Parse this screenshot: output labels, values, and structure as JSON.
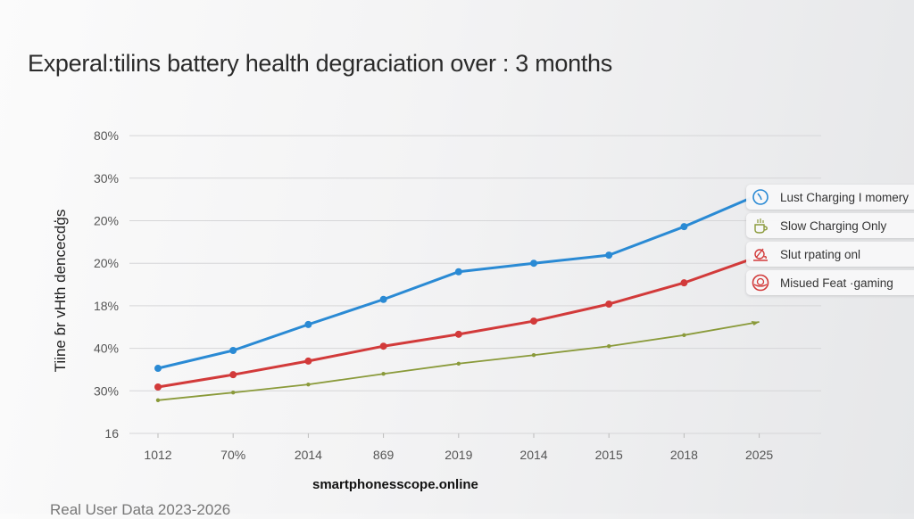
{
  "chart_data": {
    "type": "line",
    "title": "Experal:tilins battery health degraciation over : 3 months",
    "ylabel": "Tiine ɓr vHth dencecdģs",
    "xlabel": "",
    "x_ticks": [
      "1012",
      "70%",
      "2014",
      "869",
      "2019",
      "2014",
      "2015",
      "2018",
      "2025"
    ],
    "y_ticks": [
      "16",
      "30%",
      "40%",
      "18%",
      "20%",
      "20%",
      "30%",
      "80%"
    ],
    "y_value_note": "values are positions along the y axis in tick steps from the bottom tick (16 = 0, 80% = 7)",
    "ylim": [
      0,
      7
    ],
    "grid": true,
    "legend_position": "right",
    "series": [
      {
        "color": "#2a8ad4",
        "marker": "dot",
        "values": [
          1.53,
          1.95,
          2.56,
          3.15,
          3.8,
          4.0,
          4.19,
          4.86,
          5.53
        ]
      },
      {
        "color": "#d23a3a",
        "marker": "dot",
        "values": [
          1.09,
          1.38,
          1.7,
          2.05,
          2.33,
          2.64,
          3.04,
          3.54,
          4.09
        ]
      },
      {
        "color": "#8a9a3a",
        "marker": "arrow",
        "values": [
          0.78,
          0.96,
          1.15,
          1.4,
          1.64,
          1.84,
          2.05,
          2.31,
          2.62
        ]
      }
    ]
  },
  "legend": [
    {
      "label": "Lust Charging I momery",
      "icon": "clock-icon",
      "color": "#2a8ad4"
    },
    {
      "label": "Slow Charging Only",
      "icon": "coffee-cup-icon",
      "color": "#8a9a3a"
    },
    {
      "label": "Slut rpating onl",
      "icon": "heat-icon",
      "color": "#d23a3a"
    },
    {
      "label": "Misued Feat ·gaming",
      "icon": "globe-icon",
      "color": "#d23a3a"
    }
  ],
  "source": "smartphonesscope.online",
  "footer": "Real User Data 2023-2026"
}
